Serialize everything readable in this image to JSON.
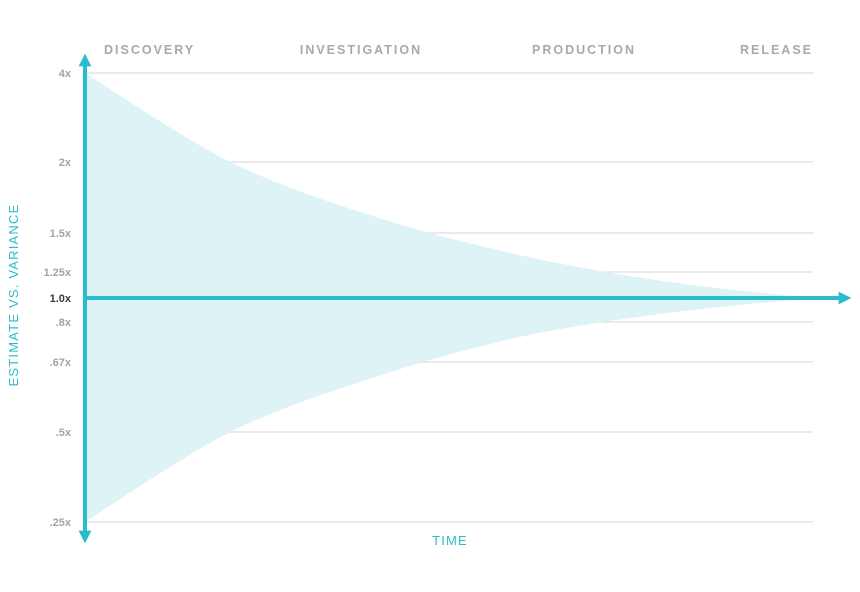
{
  "chart_data": {
    "type": "area",
    "title": "",
    "xlabel": "TIME",
    "ylabel": "ESTIMATE  VS. VARIANCE",
    "phases": [
      "DISCOVERY",
      "INVESTIGATION",
      "PRODUCTION",
      "RELEASE"
    ],
    "y_scale": "log",
    "y_ticks": [
      {
        "value": 4,
        "label": "4x"
      },
      {
        "value": 2,
        "label": "2x"
      },
      {
        "value": 1.5,
        "label": "1.5x"
      },
      {
        "value": 1.25,
        "label": "1.25x"
      },
      {
        "value": 1.0,
        "label": "1.0x"
      },
      {
        "value": 0.8,
        "label": ".8x"
      },
      {
        "value": 0.67,
        "label": ".67x"
      },
      {
        "value": 0.5,
        "label": ".5x"
      },
      {
        "value": 0.25,
        "label": ".25x"
      }
    ],
    "baseline": 1.0,
    "x_range": [
      0,
      1
    ],
    "series": [
      {
        "values_upper": [
          [
            0,
            4
          ],
          [
            0.2,
            2
          ],
          [
            0.4,
            1.6
          ],
          [
            0.6,
            1.35
          ],
          [
            0.8,
            1.15
          ],
          [
            1.0,
            1.0
          ]
        ]
      },
      {
        "values_lower": [
          [
            0,
            0.25
          ],
          [
            0.2,
            0.5
          ],
          [
            0.4,
            0.63
          ],
          [
            0.6,
            0.75
          ],
          [
            0.8,
            0.87
          ],
          [
            1.0,
            1.0
          ]
        ]
      }
    ],
    "colors": {
      "axis": "#2bbccb",
      "fill": "#ddf3f6",
      "grid": "#d6d6d6",
      "tick_text": "#a3a3a3",
      "baseline_text": "#3a3a3a"
    }
  }
}
